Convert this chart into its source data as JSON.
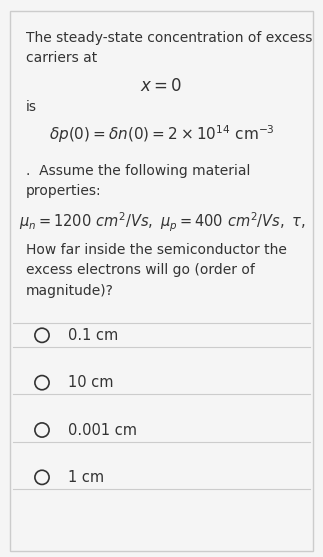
{
  "bg_color": "#f5f5f5",
  "border_color": "#cccccc",
  "text_color": "#333333",
  "title_text": "The steady-state concentration of excess\ncarriers at",
  "center_eq": "$x = 0$",
  "is_text": "is",
  "main_eq": "$\\delta p(0) = \\delta n(0) = 2 \\times 10^{14}\\ \\mathrm{cm}^{-3}$",
  "assume_text": ".  Assume the following material\nproperties:",
  "props_eq": "$\\mu_n = 1200\\ cm^2/Vs,\\ \\mu_p = 400\\ cm^2/Vs,\\ \\tau,$",
  "question_text": "How far inside the semiconductor the\nexcess electrons will go (order of\nmagnitude)?",
  "choices": [
    "0.1 cm",
    "10 cm",
    "0.001 cm",
    "1 cm"
  ],
  "font_size_body": 10.0,
  "font_size_eq": 11.0,
  "font_size_choices": 10.5
}
